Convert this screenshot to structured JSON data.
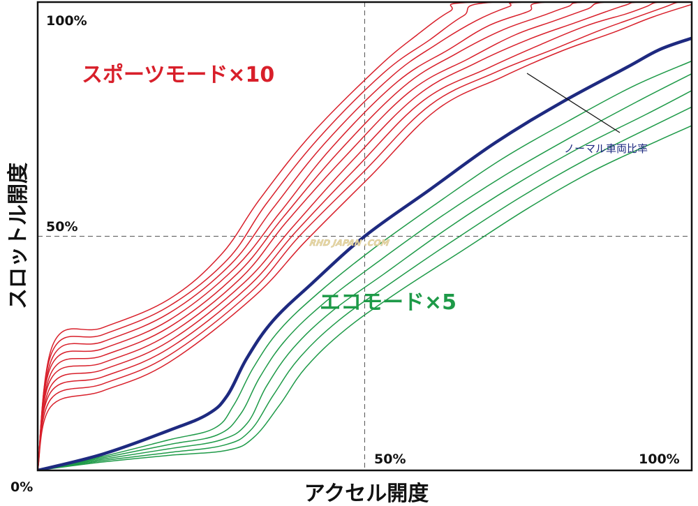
{
  "colors": {
    "sport": "#d81f2a",
    "normal": "#1e2a80",
    "eco": "#1e9a48",
    "axis": "#111111",
    "grid": "#555555"
  },
  "chart_data": {
    "type": "line",
    "title": "",
    "xlabel": "アクセル開度",
    "ylabel": "スロットル開度",
    "xlim": [
      0,
      100
    ],
    "ylim": [
      0,
      100
    ],
    "x_ticks": [
      "0%",
      "50%",
      "100%"
    ],
    "y_ticks": [
      "50%",
      "100%"
    ],
    "grid": "dashed lines at 50%",
    "annotations": {
      "sport": "スポーツモード×10",
      "eco": "エコモード×5",
      "normal": "ノーマル車両比率"
    },
    "watermark": "RHD JAPAN .COM",
    "series": [
      {
        "group": "sport",
        "level": 10,
        "values": [
          [
            0,
            0
          ],
          [
            2.4,
            27.1
          ],
          [
            10,
            30.5
          ],
          [
            20,
            36.5
          ],
          [
            28,
            46
          ],
          [
            34,
            58
          ],
          [
            42,
            72
          ],
          [
            52,
            86
          ],
          [
            58,
            93
          ],
          [
            63,
            98
          ],
          [
            67,
            100
          ],
          [
            100,
            100
          ]
        ]
      },
      {
        "group": "sport",
        "level": 9,
        "values": [
          [
            0,
            0
          ],
          [
            2.3,
            25.6
          ],
          [
            10,
            29
          ],
          [
            20,
            35
          ],
          [
            29,
            45
          ],
          [
            35,
            57
          ],
          [
            43,
            71
          ],
          [
            53,
            85
          ],
          [
            60,
            92
          ],
          [
            65,
            97
          ],
          [
            70,
            100
          ],
          [
            100,
            100
          ]
        ]
      },
      {
        "group": "sport",
        "level": 8,
        "values": [
          [
            0,
            0
          ],
          [
            2.3,
            24.2
          ],
          [
            10,
            27.5
          ],
          [
            20,
            33.5
          ],
          [
            29.5,
            44
          ],
          [
            36,
            56
          ],
          [
            44,
            70
          ],
          [
            54,
            84
          ],
          [
            61,
            91
          ],
          [
            67,
            96
          ],
          [
            72,
            99
          ],
          [
            75,
            100
          ],
          [
            100,
            100
          ]
        ]
      },
      {
        "group": "sport",
        "level": 7,
        "values": [
          [
            0,
            0
          ],
          [
            2.2,
            22.7
          ],
          [
            10,
            26
          ],
          [
            20,
            32
          ],
          [
            30,
            43
          ],
          [
            37,
            55
          ],
          [
            45,
            69
          ],
          [
            55,
            83
          ],
          [
            63,
            90
          ],
          [
            69,
            95
          ],
          [
            75,
            98
          ],
          [
            78,
            100
          ],
          [
            100,
            100
          ]
        ]
      },
      {
        "group": "sport",
        "level": 6,
        "values": [
          [
            0,
            0
          ],
          [
            2.2,
            21.2
          ],
          [
            10,
            24.5
          ],
          [
            20,
            30.5
          ],
          [
            30.5,
            42
          ],
          [
            37.5,
            54
          ],
          [
            46,
            68
          ],
          [
            56,
            82
          ],
          [
            64,
            89
          ],
          [
            71,
            94
          ],
          [
            77,
            97
          ],
          [
            81,
            99
          ],
          [
            84,
            100
          ],
          [
            100,
            100
          ]
        ]
      },
      {
        "group": "sport",
        "level": 5,
        "values": [
          [
            0,
            0
          ],
          [
            2.1,
            19.7
          ],
          [
            10,
            23
          ],
          [
            20,
            29
          ],
          [
            31,
            41
          ],
          [
            38,
            53
          ],
          [
            47,
            67
          ],
          [
            57,
            81
          ],
          [
            66,
            88
          ],
          [
            73,
            93
          ],
          [
            79,
            96
          ],
          [
            84,
            98.5
          ],
          [
            87,
            100
          ],
          [
            100,
            100
          ]
        ]
      },
      {
        "group": "sport",
        "level": 4,
        "values": [
          [
            0,
            0
          ],
          [
            2.1,
            18.2
          ],
          [
            10,
            21.5
          ],
          [
            20,
            27.5
          ],
          [
            31.5,
            40
          ],
          [
            39,
            52
          ],
          [
            48,
            66
          ],
          [
            58,
            80
          ],
          [
            67,
            87
          ],
          [
            75,
            92
          ],
          [
            82,
            95.5
          ],
          [
            87,
            98
          ],
          [
            90,
            99.4
          ],
          [
            92,
            100
          ],
          [
            100,
            100
          ]
        ]
      },
      {
        "group": "sport",
        "level": 3,
        "values": [
          [
            0,
            0
          ],
          [
            2.0,
            16.7
          ],
          [
            10,
            20
          ],
          [
            20,
            26
          ],
          [
            32,
            39
          ],
          [
            39.5,
            51
          ],
          [
            49,
            65
          ],
          [
            59,
            79
          ],
          [
            69,
            86
          ],
          [
            77,
            91
          ],
          [
            84,
            95
          ],
          [
            90,
            97.5
          ],
          [
            93,
            99
          ],
          [
            95,
            100
          ],
          [
            100,
            100
          ]
        ]
      },
      {
        "group": "sport",
        "level": 2,
        "values": [
          [
            0,
            0
          ],
          [
            2.0,
            15.2
          ],
          [
            10,
            18.5
          ],
          [
            20,
            24.5
          ],
          [
            32.5,
            38
          ],
          [
            40,
            50
          ],
          [
            50,
            64
          ],
          [
            60,
            78
          ],
          [
            70,
            85
          ],
          [
            79,
            90
          ],
          [
            86,
            94
          ],
          [
            92,
            97
          ],
          [
            96,
            99
          ],
          [
            98,
            100
          ],
          [
            100,
            100
          ]
        ]
      },
      {
        "group": "sport",
        "level": 1,
        "values": [
          [
            0,
            0
          ],
          [
            2.0,
            13.6
          ],
          [
            10,
            17
          ],
          [
            20,
            23
          ],
          [
            33,
            37
          ],
          [
            41,
            49
          ],
          [
            51,
            63
          ],
          [
            61,
            77
          ],
          [
            71,
            84
          ],
          [
            80,
            89.5
          ],
          [
            88,
            93.5
          ],
          [
            94,
            96.8
          ],
          [
            100,
            99.5
          ]
        ]
      },
      {
        "group": "normal",
        "level": 0,
        "values": [
          [
            0,
            0
          ],
          [
            10,
            3.5
          ],
          [
            20,
            8.5
          ],
          [
            26,
            12
          ],
          [
            29,
            16
          ],
          [
            32,
            24
          ],
          [
            36,
            32
          ],
          [
            42,
            40
          ],
          [
            50,
            50
          ],
          [
            60,
            60
          ],
          [
            70,
            70
          ],
          [
            80,
            78.5
          ],
          [
            90,
            86
          ],
          [
            95,
            89.8
          ],
          [
            100,
            92.3
          ]
        ]
      },
      {
        "group": "eco",
        "level": 1,
        "values": [
          [
            0,
            0
          ],
          [
            10,
            3
          ],
          [
            20,
            6.5
          ],
          [
            27,
            9
          ],
          [
            30,
            14
          ],
          [
            33,
            22
          ],
          [
            37,
            30
          ],
          [
            43,
            38
          ],
          [
            51,
            47
          ],
          [
            61,
            57
          ],
          [
            71,
            66.5
          ],
          [
            81,
            74.5
          ],
          [
            91,
            82
          ],
          [
            100,
            87.4
          ]
        ]
      },
      {
        "group": "eco",
        "level": 2,
        "values": [
          [
            0,
            0
          ],
          [
            10,
            2.7
          ],
          [
            20,
            5.5
          ],
          [
            27.5,
            7.6
          ],
          [
            31,
            12
          ],
          [
            34,
            20
          ],
          [
            38,
            28
          ],
          [
            44,
            36
          ],
          [
            52,
            44.5
          ],
          [
            62,
            54.5
          ],
          [
            72,
            63.5
          ],
          [
            82,
            71.5
          ],
          [
            92,
            79
          ],
          [
            100,
            84.7
          ]
        ]
      },
      {
        "group": "eco",
        "level": 3,
        "values": [
          [
            0,
            0
          ],
          [
            10,
            2.4
          ],
          [
            20,
            4.6
          ],
          [
            28,
            6.5
          ],
          [
            32,
            10
          ],
          [
            35,
            18
          ],
          [
            39,
            26
          ],
          [
            45,
            34
          ],
          [
            53,
            42
          ],
          [
            63,
            52
          ],
          [
            73,
            61
          ],
          [
            83,
            69
          ],
          [
            93,
            76
          ],
          [
            100,
            81.1
          ]
        ]
      },
      {
        "group": "eco",
        "level": 4,
        "values": [
          [
            0,
            0
          ],
          [
            10,
            2.1
          ],
          [
            20,
            3.8
          ],
          [
            28.5,
            5.4
          ],
          [
            32.5,
            8.5
          ],
          [
            36,
            16
          ],
          [
            40,
            24
          ],
          [
            46,
            32
          ],
          [
            54,
            40
          ],
          [
            64,
            49.5
          ],
          [
            74,
            58.5
          ],
          [
            84,
            66.5
          ],
          [
            94,
            73.5
          ],
          [
            100,
            77.6
          ]
        ]
      },
      {
        "group": "eco",
        "level": 5,
        "values": [
          [
            0,
            0
          ],
          [
            10,
            1.8
          ],
          [
            20,
            3.2
          ],
          [
            29,
            4.3
          ],
          [
            33,
            7
          ],
          [
            37,
            14
          ],
          [
            41,
            22
          ],
          [
            47,
            30
          ],
          [
            55,
            38
          ],
          [
            65,
            47
          ],
          [
            75,
            56
          ],
          [
            85,
            64
          ],
          [
            95,
            70.5
          ],
          [
            100,
            73.6
          ]
        ]
      }
    ]
  }
}
